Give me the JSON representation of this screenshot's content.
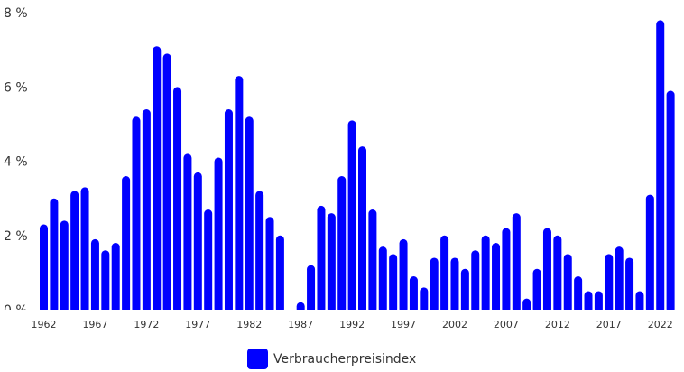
{
  "chart_data": {
    "type": "bar",
    "title": "",
    "xlabel": "",
    "ylabel": "",
    "ylim": [
      0,
      8
    ],
    "y_ticks": [
      "0 %",
      "2 %",
      "4 %",
      "6 %",
      "8 %"
    ],
    "y_tick_values": [
      0,
      2,
      4,
      6,
      8
    ],
    "x_tick_labels": [
      "1962",
      "1967",
      "1972",
      "1977",
      "1982",
      "1987",
      "1992",
      "1997",
      "2002",
      "2007",
      "2012",
      "2017",
      "2022"
    ],
    "grid": false,
    "legend_position": "bottom-center",
    "categories": [
      "1962",
      "1963",
      "1964",
      "1965",
      "1966",
      "1967",
      "1968",
      "1969",
      "1970",
      "1971",
      "1972",
      "1973",
      "1974",
      "1975",
      "1976",
      "1977",
      "1978",
      "1979",
      "1980",
      "1981",
      "1982",
      "1983",
      "1984",
      "1985",
      "1986",
      "1987",
      "1988",
      "1989",
      "1990",
      "1991",
      "1992",
      "1993",
      "1994",
      "1995",
      "1996",
      "1997",
      "1998",
      "1999",
      "2000",
      "2001",
      "2002",
      "2003",
      "2004",
      "2005",
      "2006",
      "2007",
      "2008",
      "2009",
      "2010",
      "2011",
      "2012",
      "2013",
      "2014",
      "2015",
      "2016",
      "2017",
      "2018",
      "2019",
      "2020",
      "2021",
      "2022",
      "2023"
    ],
    "series": [
      {
        "name": "Verbraucherpreisindex",
        "color": "#0000ff",
        "values": [
          2.3,
          3.0,
          2.4,
          3.2,
          3.3,
          1.9,
          1.6,
          1.8,
          3.6,
          5.2,
          5.4,
          7.1,
          6.9,
          6.0,
          4.2,
          3.7,
          2.7,
          4.1,
          5.4,
          6.3,
          5.2,
          3.2,
          2.5,
          2.0,
          -0.1,
          0.2,
          1.2,
          2.8,
          2.6,
          3.6,
          5.1,
          4.4,
          2.7,
          1.7,
          1.5,
          1.9,
          0.9,
          0.6,
          1.4,
          2.0,
          1.4,
          1.1,
          1.6,
          2.0,
          1.8,
          2.2,
          2.6,
          0.3,
          1.1,
          2.2,
          2.0,
          1.5,
          0.9,
          0.5,
          0.5,
          1.5,
          1.7,
          1.4,
          0.5,
          3.1,
          7.8,
          5.9
        ]
      }
    ]
  },
  "legend": {
    "items": [
      {
        "label": "Verbraucherpreisindex",
        "color": "#0000ff"
      }
    ]
  }
}
